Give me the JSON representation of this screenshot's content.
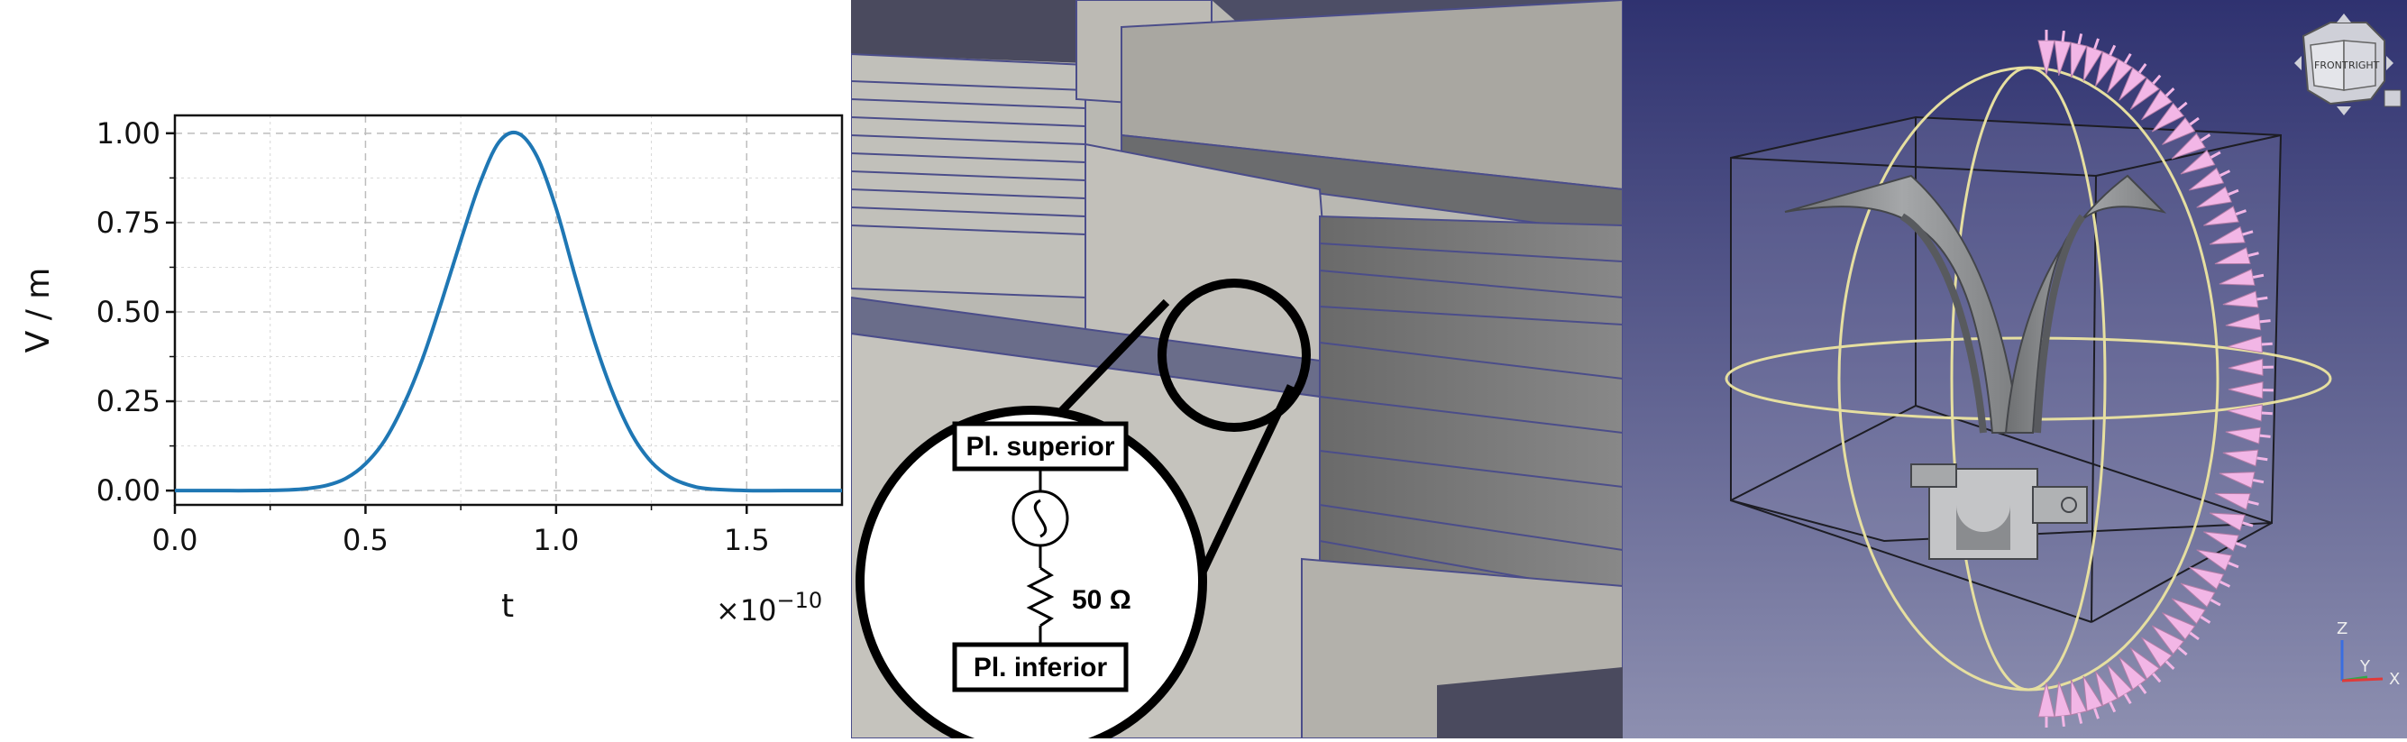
{
  "chart_data": {
    "type": "line",
    "title": "",
    "xlabel": "t",
    "ylabel": "V / m",
    "x_multiplier": "×10",
    "x_multiplier_exponent": "−10",
    "xlim": [
      0.0,
      1.75
    ],
    "ylim": [
      -0.04,
      1.05
    ],
    "x_ticks": [
      0.0,
      0.5,
      1.0,
      1.5
    ],
    "x_tick_labels": [
      "0.0",
      "0.5",
      "1.0",
      "1.5"
    ],
    "y_ticks": [
      0.0,
      0.25,
      0.5,
      0.75,
      1.0
    ],
    "y_tick_labels": [
      "0.00",
      "0.25",
      "0.50",
      "0.75",
      "1.00"
    ],
    "grid": true,
    "line_color": "#1f77b4",
    "series": [
      {
        "x": [
          0.0,
          0.1,
          0.2,
          0.3,
          0.35,
          0.4,
          0.45,
          0.5,
          0.55,
          0.6,
          0.65,
          0.7,
          0.75,
          0.8,
          0.85,
          0.9,
          0.95,
          1.0,
          1.05,
          1.1,
          1.15,
          1.2,
          1.25,
          1.3,
          1.35,
          1.4,
          1.5,
          1.6,
          1.75
        ],
        "y": [
          0.0,
          0.0,
          0.0,
          0.002,
          0.006,
          0.015,
          0.035,
          0.075,
          0.14,
          0.24,
          0.37,
          0.53,
          0.7,
          0.86,
          0.975,
          1.0,
          0.935,
          0.79,
          0.6,
          0.42,
          0.27,
          0.155,
          0.08,
          0.037,
          0.015,
          0.005,
          0.0,
          0.0,
          0.0
        ]
      }
    ]
  },
  "circuit": {
    "top_box": "Pl. superior",
    "bottom_box": "Pl. inferior",
    "resistor": "50 Ω"
  },
  "viewer": {
    "nav_front": "FRONT",
    "nav_right": "RIGHT",
    "axis_z": "Z",
    "axis_y": "Y",
    "axis_x": "X",
    "colors": {
      "background_top": "#2f3270",
      "background_bottom": "#8d8fb0",
      "arrows": "#f2b6e6",
      "sphere": "#e6dfa0",
      "horn": "#8f9193"
    }
  }
}
